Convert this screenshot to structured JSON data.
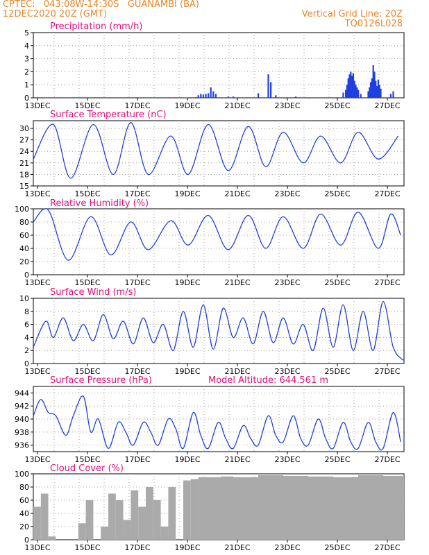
{
  "header": {
    "line1_left": "CPTEC:   043:08W-14:30S   GUANAMBI (BA)",
    "line2_left": "12DEC2020 20Z (GMT)",
    "line2_right": "Vertical Grid Line: 20Z",
    "line3_right": "TQ0126L028"
  },
  "colors": {
    "header": "#e8862a",
    "title": "#e0107a",
    "line": "#1f3fe0",
    "bar": "#1f3fe0",
    "cloud": "#aaaaaa"
  },
  "chart_data": [
    {
      "type": "bar",
      "title": "Precipitation (mm/h)",
      "x_tick_labels": [
        "13DEC",
        "15DEC",
        "17DEC",
        "19DEC",
        "21DEC",
        "23DEC",
        "25DEC",
        "27DEC"
      ],
      "y_ticks": [
        0,
        1,
        2,
        3,
        4,
        5
      ],
      "ylim": [
        0,
        5
      ],
      "x": [
        6.1,
        6.3,
        6.5,
        6.6,
        6.7,
        6.8,
        6.9,
        7.0,
        7.1,
        7.2,
        7.3,
        7.8,
        8.0,
        9.0,
        9.4,
        9.5,
        9.7,
        10.5,
        12.4,
        12.5,
        12.55,
        12.6,
        12.65,
        12.7,
        12.75,
        12.8,
        12.85,
        12.9,
        12.95,
        13.0,
        13.1,
        13.4,
        13.45,
        13.5,
        13.55,
        13.6,
        13.65,
        13.7,
        13.75,
        13.8,
        13.85,
        13.9,
        14.3,
        14.4
      ],
      "y": [
        0.02,
        0.04,
        0.05,
        0.2,
        0.3,
        0.25,
        0.3,
        0.35,
        0.8,
        0.5,
        0.3,
        0.1,
        0.1,
        0.35,
        1.8,
        1.2,
        0.2,
        0.1,
        0.4,
        0.6,
        1.0,
        1.5,
        1.8,
        2.0,
        1.7,
        1.9,
        1.3,
        1.0,
        0.8,
        0.6,
        0.3,
        0.5,
        0.8,
        1.2,
        1.5,
        2.5,
        2.0,
        1.3,
        0.9,
        1.4,
        1.0,
        0.7,
        0.3,
        0.5
      ]
    },
    {
      "type": "line",
      "title": "Surface Temperature (nC)",
      "x_tick_labels": [
        "13DEC",
        "15DEC",
        "17DEC",
        "19DEC",
        "21DEC",
        "23DEC",
        "25DEC",
        "27DEC"
      ],
      "y_ticks": [
        15,
        18,
        21,
        24,
        27,
        30
      ],
      "ylim": [
        15,
        32
      ],
      "x": [
        0,
        0.8,
        1.5,
        2.4,
        3.2,
        3.9,
        4.6,
        5.5,
        6.2,
        7.0,
        7.8,
        8.6,
        9.3,
        10.0,
        10.8,
        11.5,
        12.3,
        13.0,
        13.8,
        14.6
      ],
      "highs": [
        31,
        31,
        31,
        31,
        31,
        31.5,
        30,
        28,
        29,
        31,
        31,
        30.5,
        30,
        29,
        29,
        28,
        28,
        29,
        27,
        28
      ],
      "lows": [
        16,
        18,
        17,
        16,
        18,
        19,
        18,
        19,
        18,
        20,
        19,
        21,
        20,
        21,
        21,
        22,
        21,
        22,
        22,
        24
      ],
      "start_value": 22
    },
    {
      "type": "line",
      "title": "Relative Humidity (%)",
      "x_tick_labels": [
        "13DEC",
        "15DEC",
        "17DEC",
        "19DEC",
        "21DEC",
        "23DEC",
        "25DEC",
        "27DEC"
      ],
      "y_ticks": [
        0,
        20,
        40,
        60,
        80,
        100
      ],
      "ylim": [
        0,
        100
      ],
      "x": [
        0,
        0.6,
        1.4,
        2.3,
        3.1,
        3.9,
        4.6,
        5.5,
        6.2,
        7.0,
        7.8,
        8.6,
        9.3,
        10.0,
        10.8,
        11.5,
        12.3,
        13.0,
        13.8,
        14.3,
        14.7
      ],
      "highs": [
        82,
        98,
        90,
        88,
        85,
        80,
        75,
        82,
        88,
        90,
        85,
        90,
        92,
        88,
        92,
        92,
        90,
        95,
        95,
        92,
        60
      ],
      "lows": [
        80,
        22,
        22,
        28,
        30,
        30,
        38,
        42,
        45,
        40,
        38,
        40,
        40,
        42,
        40,
        42,
        45,
        38,
        40,
        45,
        60
      ]
    },
    {
      "type": "line",
      "title": "Surface Wind (m/s)",
      "x_tick_labels": [
        "13DEC",
        "15DEC",
        "17DEC",
        "19DEC",
        "21DEC",
        "23DEC",
        "25DEC",
        "27DEC"
      ],
      "y_ticks": [
        0,
        2,
        4,
        6,
        8,
        10
      ],
      "ylim": [
        0,
        10
      ],
      "x": [
        0,
        0.5,
        0.8,
        1.2,
        1.6,
        2.0,
        2.4,
        2.8,
        3.2,
        3.6,
        4.0,
        4.4,
        4.8,
        5.2,
        5.6,
        6.0,
        6.4,
        6.8,
        7.2,
        7.6,
        8.0,
        8.4,
        8.8,
        9.2,
        9.6,
        10.0,
        10.4,
        10.8,
        11.2,
        11.6,
        12.0,
        12.4,
        12.8,
        13.2,
        13.6,
        14.0,
        14.4,
        14.8
      ],
      "y": [
        2.5,
        6.5,
        4.0,
        7.0,
        3.5,
        6.0,
        3.5,
        7.5,
        3.8,
        6.5,
        3.0,
        7.0,
        3.2,
        6.0,
        2.0,
        8.0,
        2.5,
        9.0,
        2.2,
        8.5,
        4.0,
        7.0,
        3.0,
        8.0,
        3.2,
        7.0,
        3.0,
        6.0,
        2.0,
        8.5,
        2.5,
        9.0,
        2.0,
        8.0,
        2.0,
        9.5,
        2.5,
        0.5
      ]
    },
    {
      "type": "line",
      "title": "Surface Pressure (hPa)",
      "annotation": "Model Altitude: 644.561  m",
      "x_tick_labels": [
        "13DEC",
        "15DEC",
        "17DEC",
        "19DEC",
        "21DEC",
        "23DEC",
        "25DEC",
        "27DEC"
      ],
      "y_ticks": [
        936,
        938,
        940,
        942,
        944
      ],
      "ylim": [
        935,
        945
      ],
      "x": [
        0,
        0.3,
        0.6,
        0.9,
        1.3,
        1.6,
        2.0,
        2.3,
        2.6,
        3.0,
        3.4,
        3.7,
        4.0,
        4.4,
        4.7,
        5.0,
        5.4,
        5.7,
        6.0,
        6.4,
        6.7,
        7.0,
        7.4,
        7.7,
        8.0,
        8.4,
        8.7,
        9.0,
        9.4,
        9.7,
        10.0,
        10.4,
        10.7,
        11.0,
        11.4,
        11.7,
        12.0,
        12.4,
        12.7,
        13.0,
        13.4,
        13.7,
        14.0,
        14.4,
        14.7
      ],
      "y": [
        940.5,
        943.0,
        941.0,
        940.5,
        937.5,
        940.5,
        943.5,
        938.0,
        940.0,
        935.5,
        939.5,
        938.0,
        936.0,
        939.5,
        938.0,
        936.0,
        940.0,
        938.5,
        935.5,
        941.0,
        937.5,
        935.5,
        939.5,
        937.0,
        935.5,
        939.0,
        937.0,
        936.0,
        940.5,
        937.5,
        936.5,
        940.5,
        937.0,
        936.0,
        940.0,
        937.0,
        935.5,
        939.5,
        936.5,
        935.5,
        939.5,
        936.5,
        935.5,
        941.0,
        936.5
      ]
    },
    {
      "type": "area",
      "title": "Cloud Cover (%)",
      "x_tick_labels": [
        "13DEC",
        "15DEC",
        "17DEC",
        "19DEC",
        "21DEC",
        "23DEC",
        "25DEC",
        "27DEC"
      ],
      "y_ticks": [
        0,
        20,
        40,
        60,
        80,
        100
      ],
      "ylim": [
        0,
        100
      ],
      "x": [
        0,
        0.3,
        0.6,
        0.9,
        1.2,
        1.5,
        1.8,
        2.1,
        2.4,
        2.7,
        3.0,
        3.3,
        3.6,
        3.9,
        4.2,
        4.5,
        4.8,
        5.1,
        5.4,
        5.7,
        6.0,
        6.3,
        6.6,
        7.0,
        7.5,
        8.0,
        9.0,
        10.0,
        11.0,
        12.0,
        13.0,
        14.0,
        14.8
      ],
      "y": [
        50,
        70,
        5,
        0,
        0,
        0,
        25,
        60,
        0,
        20,
        70,
        60,
        30,
        75,
        50,
        80,
        60,
        20,
        80,
        0,
        90,
        92,
        95,
        95,
        96,
        95,
        98,
        97,
        96,
        95,
        98,
        97,
        98
      ]
    }
  ]
}
